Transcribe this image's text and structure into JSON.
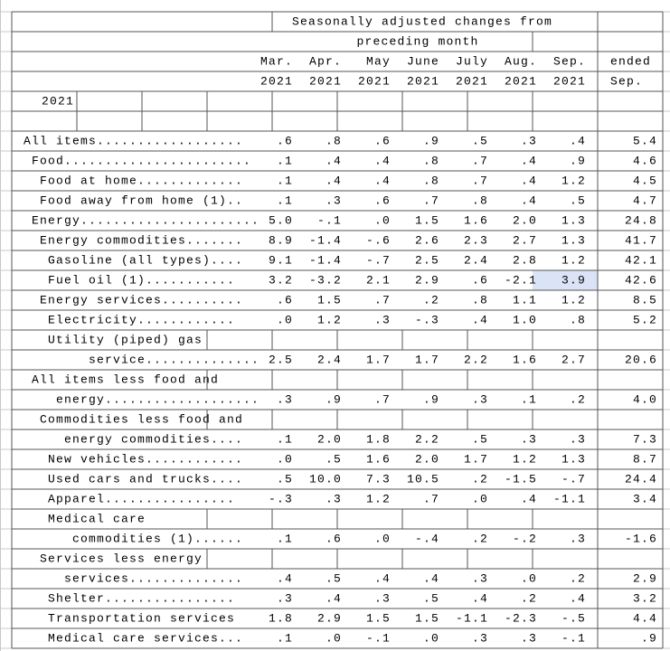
{
  "header": {
    "title": [
      "Seasonally adjusted changes from",
      "preceding month"
    ],
    "year": "2021",
    "columns": [
      {
        "line1": "Mar.",
        "line2": "2021"
      },
      {
        "line1": "Apr.",
        "line2": "2021"
      },
      {
        "line1": "May",
        "line2": "2021"
      },
      {
        "line1": "June",
        "line2": "2021"
      },
      {
        "line1": "July",
        "line2": "2021"
      },
      {
        "line1": "Aug.",
        "line2": "2021"
      },
      {
        "line1": "Sep.",
        "line2": "2021"
      },
      {
        "line1": "ended",
        "line2": "Sep."
      }
    ]
  },
  "rows": [
    {
      "label": "All items..................",
      "values": [
        ".6",
        ".8",
        ".6",
        ".9",
        ".5",
        ".3",
        ".4",
        "5.4"
      ]
    },
    {
      "label": "Food.......................",
      "values": [
        ".1",
        ".4",
        ".4",
        ".8",
        ".7",
        ".4",
        ".9",
        "4.6"
      ]
    },
    {
      "label": "Food at home.............",
      "values": [
        ".1",
        ".4",
        ".4",
        ".8",
        ".7",
        ".4",
        "1.2",
        "4.5"
      ]
    },
    {
      "label": "Food away from home (1)..",
      "values": [
        ".1",
        ".3",
        ".6",
        ".7",
        ".8",
        ".4",
        ".5",
        "4.7"
      ]
    },
    {
      "label": "Energy......................",
      "values": [
        "5.0",
        "-.1",
        ".0",
        "1.5",
        "1.6",
        "2.0",
        "1.3",
        "24.8"
      ]
    },
    {
      "label": "Energy commodities.......",
      "values": [
        "8.9",
        "-1.4",
        "-.6",
        "2.6",
        "2.3",
        "2.7",
        "1.3",
        "41.7"
      ]
    },
    {
      "label": "Gasoline (all types)....",
      "values": [
        "9.1",
        "-1.4",
        "-.7",
        "2.5",
        "2.4",
        "2.8",
        "1.2",
        "42.1"
      ]
    },
    {
      "label": "Fuel oil (1)...........",
      "values": [
        "3.2",
        "-3.2",
        "2.1",
        "2.9",
        ".6",
        "-2.1",
        "3.9",
        "42.6"
      ]
    },
    {
      "label": "Energy services..........",
      "values": [
        ".6",
        "1.5",
        ".7",
        ".2",
        ".8",
        "1.1",
        "1.2",
        "8.5"
      ]
    },
    {
      "label": "Electricity............",
      "values": [
        ".0",
        "1.2",
        ".3",
        "-.3",
        ".4",
        "1.0",
        ".8",
        "5.2"
      ]
    },
    {
      "label": "Utility (piped) gas"
    },
    {
      "label": "service..............",
      "values": [
        "2.5",
        "2.4",
        "1.7",
        "1.7",
        "2.2",
        "1.6",
        "2.7",
        "20.6"
      ]
    },
    {
      "label": "All items less food and"
    },
    {
      "label": "energy...................",
      "values": [
        ".3",
        ".9",
        ".7",
        ".9",
        ".3",
        ".1",
        ".2",
        "4.0"
      ]
    },
    {
      "label": "Commodities less food and"
    },
    {
      "label": "energy commodities....",
      "values": [
        ".1",
        "2.0",
        "1.8",
        "2.2",
        ".5",
        ".3",
        ".3",
        "7.3"
      ]
    },
    {
      "label": "New vehicles............",
      "values": [
        ".0",
        ".5",
        "1.6",
        "2.0",
        "1.7",
        "1.2",
        "1.3",
        "8.7"
      ]
    },
    {
      "label": "Used cars and trucks....",
      "values": [
        ".5",
        "10.0",
        "7.3",
        "10.5",
        ".2",
        "-1.5",
        "-.7",
        "24.4"
      ]
    },
    {
      "label": "Apparel................",
      "values": [
        "-.3",
        ".3",
        "1.2",
        ".7",
        ".0",
        ".4",
        "-1.1",
        "3.4"
      ]
    },
    {
      "label": "Medical care"
    },
    {
      "label": "commodities (1)......",
      "values": [
        ".1",
        ".6",
        ".0",
        "-.4",
        ".2",
        "-.2",
        ".3",
        "-1.6"
      ]
    },
    {
      "label": "Services less energy"
    },
    {
      "label": "services..............",
      "values": [
        ".4",
        ".5",
        ".4",
        ".4",
        ".3",
        ".0",
        ".2",
        "2.9"
      ]
    },
    {
      "label": "Shelter................",
      "values": [
        ".3",
        ".4",
        ".3",
        ".5",
        ".4",
        ".2",
        ".4",
        "3.2"
      ]
    },
    {
      "label": "Transportation services",
      "values": [
        "1.8",
        "2.9",
        "1.5",
        "1.5",
        "-1.1",
        "-2.3",
        "-.5",
        "4.4"
      ]
    },
    {
      "label": "Medical care services...",
      "values": [
        ".1",
        ".0",
        "-.1",
        ".0",
        ".3",
        ".3",
        "-.1",
        ".9"
      ]
    }
  ]
}
